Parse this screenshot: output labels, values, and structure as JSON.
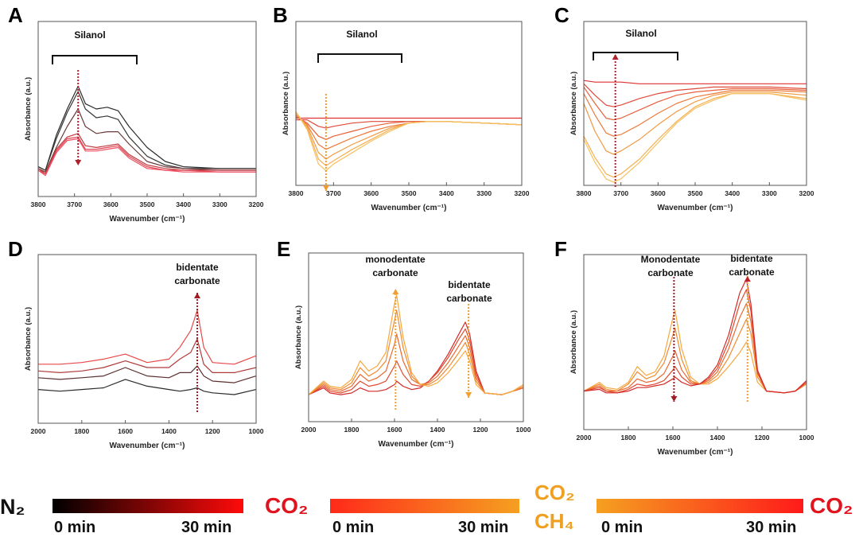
{
  "chart_data": [
    {
      "panel": "A",
      "type": "line",
      "xlabel": "Wavenumber (cm⁻¹)",
      "ylabel": "Absorbance (a.u.)",
      "xlim": [
        3800,
        3200
      ],
      "ylim": [
        0,
        1
      ],
      "xticks": [
        "3800",
        "3700",
        "3600",
        "3500",
        "3400",
        "3300",
        "3200"
      ],
      "annotations": [
        {
          "text": "Silanol"
        }
      ],
      "x": [
        3800,
        3780,
        3750,
        3720,
        3690,
        3670,
        3640,
        3610,
        3580,
        3550,
        3500,
        3450,
        3400,
        3300,
        3200
      ],
      "series": [
        {
          "name": "N2 0 min",
          "color": "#2a2a2a",
          "values": [
            0.17,
            0.15,
            0.35,
            0.5,
            0.63,
            0.53,
            0.5,
            0.51,
            0.49,
            0.4,
            0.28,
            0.2,
            0.17,
            0.16,
            0.16
          ]
        },
        {
          "name": "N2",
          "color": "#3a3434",
          "values": [
            0.17,
            0.15,
            0.33,
            0.48,
            0.6,
            0.5,
            0.45,
            0.46,
            0.44,
            0.34,
            0.23,
            0.18,
            0.16,
            0.16,
            0.16
          ]
        },
        {
          "name": "N2",
          "color": "#6a3a3a",
          "values": [
            0.16,
            0.14,
            0.28,
            0.4,
            0.5,
            0.4,
            0.36,
            0.37,
            0.37,
            0.3,
            0.2,
            0.17,
            0.16,
            0.15,
            0.15
          ]
        },
        {
          "name": "N2",
          "color": "#c03a40",
          "values": [
            0.16,
            0.13,
            0.27,
            0.34,
            0.36,
            0.29,
            0.28,
            0.29,
            0.3,
            0.24,
            0.18,
            0.16,
            0.15,
            0.15,
            0.15
          ]
        },
        {
          "name": "N2",
          "color": "#e04050",
          "values": [
            0.15,
            0.13,
            0.26,
            0.33,
            0.34,
            0.27,
            0.27,
            0.28,
            0.29,
            0.23,
            0.17,
            0.15,
            0.15,
            0.14,
            0.14
          ]
        },
        {
          "name": "N2 30 min",
          "color": "#f05060",
          "values": [
            0.15,
            0.12,
            0.25,
            0.32,
            0.33,
            0.26,
            0.26,
            0.27,
            0.28,
            0.22,
            0.16,
            0.15,
            0.14,
            0.14,
            0.14
          ]
        }
      ]
    },
    {
      "panel": "B",
      "type": "line",
      "xlabel": "Wavenumber (cm⁻¹)",
      "ylabel": "Absorbance (a.u.)",
      "xlim": [
        3800,
        3200
      ],
      "ylim": [
        0,
        1
      ],
      "xticks": [
        "3800",
        "3700",
        "3600",
        "3500",
        "3400",
        "3300",
        "3200"
      ],
      "annotations": [
        {
          "text": "Silanol"
        }
      ],
      "x": [
        3800,
        3770,
        3740,
        3720,
        3700,
        3650,
        3600,
        3550,
        3500,
        3450,
        3400,
        3300,
        3200
      ],
      "series": [
        {
          "name": "CO2 0 min",
          "color": "#e03030",
          "values": [
            0.41,
            0.41,
            0.41,
            0.41,
            0.41,
            0.41,
            0.41,
            0.41,
            0.41,
            0.41,
            0.41,
            0.41,
            0.41
          ]
        },
        {
          "name": "CO2",
          "color": "#e04a3a",
          "values": [
            0.4,
            0.4,
            0.36,
            0.35,
            0.36,
            0.38,
            0.39,
            0.39,
            0.39,
            0.39,
            0.39,
            0.38,
            0.37
          ]
        },
        {
          "name": "CO2",
          "color": "#e8603a",
          "values": [
            0.42,
            0.38,
            0.3,
            0.28,
            0.3,
            0.33,
            0.36,
            0.38,
            0.39,
            0.39,
            0.39,
            0.38,
            0.37
          ]
        },
        {
          "name": "CO2",
          "color": "#ec7a3a",
          "values": [
            0.43,
            0.37,
            0.25,
            0.22,
            0.24,
            0.29,
            0.33,
            0.36,
            0.38,
            0.39,
            0.39,
            0.38,
            0.37
          ]
        },
        {
          "name": "CO2",
          "color": "#f09a40",
          "values": [
            0.44,
            0.36,
            0.2,
            0.16,
            0.19,
            0.25,
            0.3,
            0.35,
            0.38,
            0.39,
            0.39,
            0.38,
            0.37
          ]
        },
        {
          "name": "CO2",
          "color": "#f5b050",
          "values": [
            0.45,
            0.35,
            0.16,
            0.12,
            0.15,
            0.22,
            0.28,
            0.34,
            0.38,
            0.39,
            0.39,
            0.38,
            0.37
          ]
        },
        {
          "name": "CO2 30 min",
          "color": "#f7c060",
          "values": [
            0.45,
            0.34,
            0.13,
            0.09,
            0.13,
            0.2,
            0.27,
            0.33,
            0.38,
            0.39,
            0.39,
            0.38,
            0.37
          ]
        }
      ]
    },
    {
      "panel": "C",
      "type": "line",
      "xlabel": "Wavenumber (cm⁻¹)",
      "ylabel": "Absorbance (a.u.)",
      "xlim": [
        3800,
        3200
      ],
      "ylim": [
        0,
        1
      ],
      "xticks": [
        "3800",
        "3700",
        "3600",
        "3500",
        "3400",
        "3300",
        "3200"
      ],
      "annotations": [
        {
          "text": "Silanol"
        }
      ],
      "x": [
        3800,
        3770,
        3740,
        3720,
        3700,
        3650,
        3600,
        3550,
        3500,
        3450,
        3400,
        3300,
        3200
      ],
      "series": [
        {
          "name": "CO2+CH4 0 min",
          "color": "#e03030",
          "values": [
            0.64,
            0.63,
            0.63,
            0.63,
            0.63,
            0.62,
            0.62,
            0.62,
            0.62,
            0.62,
            0.62,
            0.62,
            0.62
          ]
        },
        {
          "name": "CO2+CH4",
          "color": "#e04a3a",
          "values": [
            0.62,
            0.55,
            0.49,
            0.48,
            0.49,
            0.53,
            0.56,
            0.58,
            0.59,
            0.6,
            0.6,
            0.6,
            0.59
          ]
        },
        {
          "name": "CO2+CH4",
          "color": "#e8603a",
          "values": [
            0.6,
            0.5,
            0.41,
            0.4,
            0.41,
            0.46,
            0.51,
            0.55,
            0.57,
            0.58,
            0.59,
            0.59,
            0.58
          ]
        },
        {
          "name": "CO2+CH4",
          "color": "#ec7a3a",
          "values": [
            0.56,
            0.43,
            0.32,
            0.3,
            0.31,
            0.37,
            0.44,
            0.5,
            0.54,
            0.56,
            0.58,
            0.58,
            0.57
          ]
        },
        {
          "name": "CO2+CH4",
          "color": "#f09a40",
          "values": [
            0.5,
            0.33,
            0.21,
            0.19,
            0.21,
            0.28,
            0.37,
            0.45,
            0.51,
            0.55,
            0.57,
            0.57,
            0.55
          ]
        },
        {
          "name": "CO2+CH4",
          "color": "#f5b050",
          "values": [
            0.3,
            0.17,
            0.07,
            0.05,
            0.07,
            0.16,
            0.28,
            0.39,
            0.48,
            0.53,
            0.56,
            0.56,
            0.53
          ]
        },
        {
          "name": "CO2+CH4 30 min",
          "color": "#f7c060",
          "values": [
            0.28,
            0.14,
            0.04,
            0.02,
            0.04,
            0.14,
            0.26,
            0.38,
            0.47,
            0.52,
            0.56,
            0.56,
            0.52
          ]
        }
      ]
    },
    {
      "panel": "D",
      "type": "line",
      "xlabel": "Wavenumber (cm⁻¹)",
      "ylabel": "Absorbance (a.u.)",
      "xlim": [
        2000,
        1000
      ],
      "ylim": [
        0,
        1
      ],
      "xticks": [
        "2000",
        "1800",
        "1600",
        "1400",
        "1200",
        "1000"
      ],
      "annotations": [
        {
          "text": "bidentate"
        },
        {
          "text": "carbonate"
        }
      ],
      "x": [
        2000,
        1900,
        1800,
        1700,
        1600,
        1500,
        1400,
        1350,
        1300,
        1270,
        1240,
        1200,
        1100,
        1000
      ],
      "series": [
        {
          "name": "CO2 0 min",
          "color": "#2a2a2a",
          "values": [
            0.2,
            0.19,
            0.2,
            0.21,
            0.26,
            0.22,
            0.2,
            0.19,
            0.2,
            0.21,
            0.19,
            0.18,
            0.17,
            0.2
          ]
        },
        {
          "name": "CO2",
          "color": "#5a3030",
          "values": [
            0.27,
            0.26,
            0.27,
            0.28,
            0.33,
            0.28,
            0.27,
            0.3,
            0.3,
            0.34,
            0.28,
            0.25,
            0.24,
            0.28
          ]
        },
        {
          "name": "CO2",
          "color": "#b03a3a",
          "values": [
            0.31,
            0.3,
            0.31,
            0.33,
            0.37,
            0.33,
            0.33,
            0.38,
            0.42,
            0.5,
            0.35,
            0.3,
            0.3,
            0.33
          ]
        },
        {
          "name": "CO2 30 min",
          "color": "#e84848",
          "values": [
            0.35,
            0.35,
            0.36,
            0.38,
            0.41,
            0.36,
            0.38,
            0.45,
            0.55,
            0.67,
            0.45,
            0.36,
            0.35,
            0.4
          ]
        }
      ]
    },
    {
      "panel": "E",
      "type": "line",
      "xlabel": "Wavenumber (cm⁻¹)",
      "ylabel": "Absorbance (a.u.)",
      "xlim": [
        2000,
        1000
      ],
      "ylim": [
        0,
        1
      ],
      "xticks": [
        "2000",
        "1800",
        "1600",
        "1400",
        "1200",
        "1000"
      ],
      "annotations": [
        {
          "text": "monodentate"
        },
        {
          "text": "carbonate"
        },
        {
          "text": "bidentate"
        },
        {
          "text": "carbonate"
        }
      ],
      "x": [
        2000,
        1930,
        1900,
        1850,
        1800,
        1760,
        1720,
        1680,
        1640,
        1600,
        1590,
        1560,
        1520,
        1480,
        1440,
        1400,
        1350,
        1300,
        1270,
        1250,
        1220,
        1180,
        1100,
        1050,
        1000
      ],
      "series": [
        {
          "name": "0 min",
          "color": "#d42a2a",
          "values": [
            0.16,
            0.2,
            0.17,
            0.16,
            0.17,
            0.2,
            0.18,
            0.18,
            0.19,
            0.22,
            0.24,
            0.21,
            0.19,
            0.2,
            0.24,
            0.3,
            0.4,
            0.52,
            0.59,
            0.52,
            0.3,
            0.17,
            0.16,
            0.18,
            0.2
          ]
        },
        {
          "name": "",
          "color": "#e04a30",
          "values": [
            0.16,
            0.21,
            0.18,
            0.17,
            0.19,
            0.24,
            0.21,
            0.22,
            0.24,
            0.33,
            0.36,
            0.28,
            0.22,
            0.21,
            0.24,
            0.29,
            0.38,
            0.49,
            0.55,
            0.48,
            0.28,
            0.17,
            0.16,
            0.18,
            0.2
          ]
        },
        {
          "name": "",
          "color": "#e86a30",
          "values": [
            0.16,
            0.22,
            0.19,
            0.18,
            0.21,
            0.28,
            0.24,
            0.26,
            0.3,
            0.46,
            0.52,
            0.36,
            0.25,
            0.22,
            0.23,
            0.27,
            0.35,
            0.45,
            0.51,
            0.44,
            0.26,
            0.17,
            0.16,
            0.18,
            0.2
          ]
        },
        {
          "name": "",
          "color": "#f08a30",
          "values": [
            0.16,
            0.23,
            0.2,
            0.19,
            0.23,
            0.32,
            0.27,
            0.3,
            0.36,
            0.6,
            0.66,
            0.44,
            0.27,
            0.22,
            0.22,
            0.25,
            0.32,
            0.41,
            0.47,
            0.4,
            0.24,
            0.17,
            0.16,
            0.18,
            0.21
          ]
        },
        {
          "name": "30 min",
          "color": "#f5a840",
          "values": [
            0.16,
            0.24,
            0.21,
            0.2,
            0.25,
            0.36,
            0.3,
            0.33,
            0.41,
            0.7,
            0.75,
            0.5,
            0.29,
            0.22,
            0.21,
            0.23,
            0.29,
            0.37,
            0.42,
            0.36,
            0.22,
            0.17,
            0.16,
            0.18,
            0.22
          ]
        }
      ]
    },
    {
      "panel": "F",
      "type": "line",
      "xlabel": "Wavenumber (cm⁻¹)",
      "ylabel": "Absorbance (a.u.)",
      "xlim": [
        2000,
        1000
      ],
      "ylim": [
        0,
        1
      ],
      "xticks": [
        "2000",
        "1800",
        "1600",
        "1400",
        "1200",
        "1000"
      ],
      "annotations": [
        {
          "text": "Monodentate"
        },
        {
          "text": "carbonate"
        },
        {
          "text": "bidentate"
        },
        {
          "text": "carbonate"
        }
      ],
      "x": [
        2000,
        1930,
        1900,
        1850,
        1800,
        1760,
        1720,
        1680,
        1640,
        1600,
        1590,
        1560,
        1520,
        1480,
        1440,
        1400,
        1350,
        1300,
        1270,
        1250,
        1220,
        1180,
        1100,
        1050,
        1000
      ],
      "series": [
        {
          "name": "0 min",
          "color": "#f5a840",
          "values": [
            0.22,
            0.27,
            0.24,
            0.23,
            0.27,
            0.36,
            0.31,
            0.33,
            0.42,
            0.64,
            0.68,
            0.46,
            0.3,
            0.26,
            0.26,
            0.29,
            0.36,
            0.44,
            0.5,
            0.44,
            0.27,
            0.22,
            0.21,
            0.22,
            0.26
          ]
        },
        {
          "name": "",
          "color": "#f08a30",
          "values": [
            0.22,
            0.26,
            0.23,
            0.22,
            0.26,
            0.33,
            0.29,
            0.31,
            0.38,
            0.54,
            0.58,
            0.4,
            0.28,
            0.26,
            0.27,
            0.31,
            0.41,
            0.55,
            0.63,
            0.55,
            0.3,
            0.22,
            0.21,
            0.22,
            0.26
          ]
        },
        {
          "name": "",
          "color": "#e86a30",
          "values": [
            0.22,
            0.25,
            0.22,
            0.22,
            0.24,
            0.29,
            0.27,
            0.28,
            0.32,
            0.42,
            0.45,
            0.34,
            0.27,
            0.26,
            0.28,
            0.33,
            0.46,
            0.64,
            0.72,
            0.62,
            0.32,
            0.22,
            0.21,
            0.22,
            0.27
          ]
        },
        {
          "name": "",
          "color": "#e04a30",
          "values": [
            0.22,
            0.24,
            0.22,
            0.21,
            0.23,
            0.26,
            0.25,
            0.26,
            0.28,
            0.34,
            0.36,
            0.3,
            0.26,
            0.26,
            0.29,
            0.35,
            0.5,
            0.72,
            0.8,
            0.68,
            0.33,
            0.22,
            0.21,
            0.22,
            0.27
          ]
        },
        {
          "name": "30 min",
          "color": "#d42a2a",
          "values": [
            0.22,
            0.23,
            0.21,
            0.21,
            0.22,
            0.24,
            0.24,
            0.25,
            0.26,
            0.29,
            0.3,
            0.27,
            0.25,
            0.26,
            0.3,
            0.37,
            0.54,
            0.78,
            0.86,
            0.72,
            0.34,
            0.22,
            0.21,
            0.22,
            0.28
          ]
        }
      ]
    }
  ],
  "legend": {
    "n2": "N₂",
    "co2_left": "CO₂",
    "co2_mid": "CO₂",
    "ch4_mid": "CH₄",
    "co2_right": "CO₂",
    "bar1": {
      "start": "0 min",
      "end": "30 min",
      "colors": [
        "#000000",
        "#ff0a0a"
      ]
    },
    "bar2": {
      "start": "0 min",
      "end": "30 min",
      "colors": [
        "#ff2a1a",
        "#f5a020"
      ]
    },
    "bar3": {
      "start": "0 min",
      "end": "30 min",
      "colors": [
        "#f5a020",
        "#ff1a1a"
      ]
    },
    "colors": {
      "red": "#e0141e",
      "orange": "#f0a020"
    }
  }
}
